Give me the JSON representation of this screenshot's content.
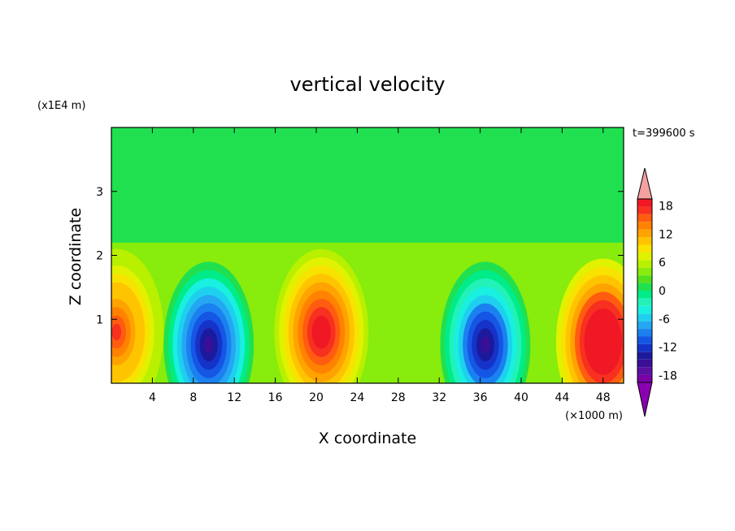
{
  "chart_data": {
    "type": "heatmap",
    "title": "vertical velocity",
    "xlabel": "X coordinate",
    "ylabel": "Z coordinate",
    "x_unit": "(×1000 m)",
    "y_unit": "(x1E4 m)",
    "time_label": "t=399600 s",
    "xlim": [
      0,
      50
    ],
    "ylim": [
      0,
      4
    ],
    "x_ticks": [
      4,
      8,
      12,
      16,
      20,
      24,
      28,
      32,
      36,
      40,
      44,
      48
    ],
    "y_ticks": [
      1,
      2,
      3
    ],
    "colorbar": {
      "levels": [
        -21,
        -19.5,
        -18,
        -16.5,
        -15,
        -13.5,
        -12,
        -10.5,
        -9,
        -7.5,
        -6,
        -4.5,
        -3,
        -1.5,
        0,
        1.5,
        3,
        4.5,
        6,
        7.5,
        9,
        10.5,
        12,
        13.5,
        15,
        16.5,
        18,
        19.5,
        21
      ],
      "tick_labels": [
        "18",
        "12",
        "6",
        "0",
        "-6",
        "-12",
        "-18"
      ],
      "tick_values": [
        18,
        12,
        6,
        0,
        -6,
        -12,
        -18
      ],
      "extend": "both"
    },
    "features": [
      {
        "x": 0.5,
        "z": 0.8,
        "value": 12,
        "kind": "updraft"
      },
      {
        "x": 9.5,
        "z": 0.6,
        "value": -18,
        "kind": "downdraft"
      },
      {
        "x": 20.5,
        "z": 0.8,
        "value": 16,
        "kind": "updraft"
      },
      {
        "x": 36.5,
        "z": 0.6,
        "value": -17,
        "kind": "downdraft"
      },
      {
        "x": 48.0,
        "z": 0.65,
        "value": 20,
        "kind": "updraft"
      }
    ]
  }
}
